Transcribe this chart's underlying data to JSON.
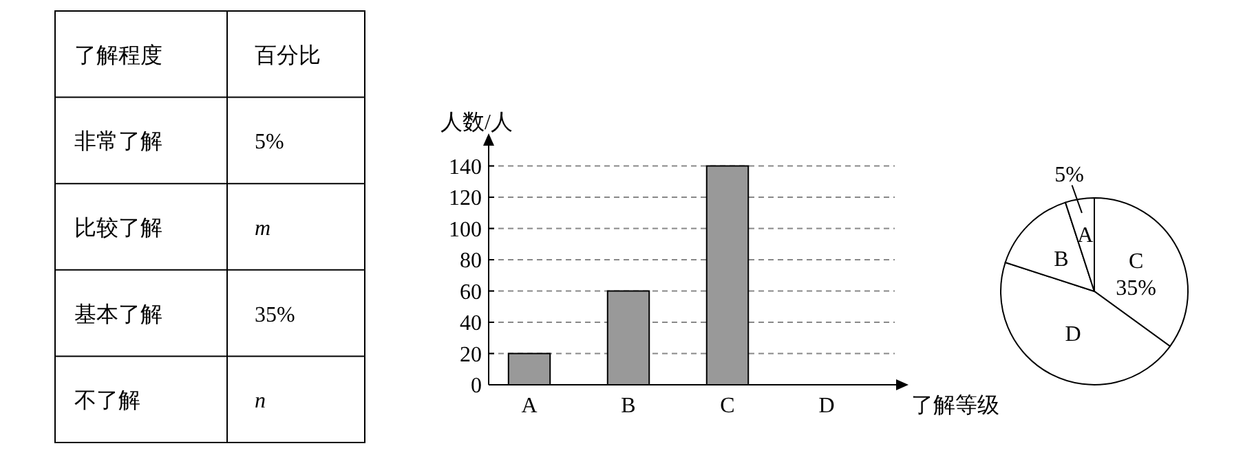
{
  "chart_data": [
    {
      "type": "other",
      "annotations": [
        "了解程度",
        "百分比",
        "非常了解",
        "5%",
        "比较了解",
        "m",
        "基本了解",
        "35%",
        "不了解",
        "n"
      ]
    },
    {
      "type": "bar",
      "categories": [
        "A",
        "B",
        "C",
        "D"
      ],
      "values": [
        20,
        60,
        140,
        null
      ],
      "color": "#999999",
      "ylim": [
        0,
        160
      ],
      "yticks": [
        0,
        20,
        40,
        60,
        80,
        100,
        120,
        140
      ],
      "grid": "y",
      "xlabel": "了解等级",
      "ylabel": "人数/人"
    },
    {
      "type": "pie",
      "categories": [
        "C",
        "D",
        "B",
        "A"
      ],
      "values": [
        35,
        45,
        15,
        5
      ],
      "colors": [
        "#ffffff",
        "#ffffff",
        "#ffffff",
        "#ffffff"
      ],
      "value_labels": [
        "35%",
        null,
        null,
        "5%"
      ]
    }
  ]
}
